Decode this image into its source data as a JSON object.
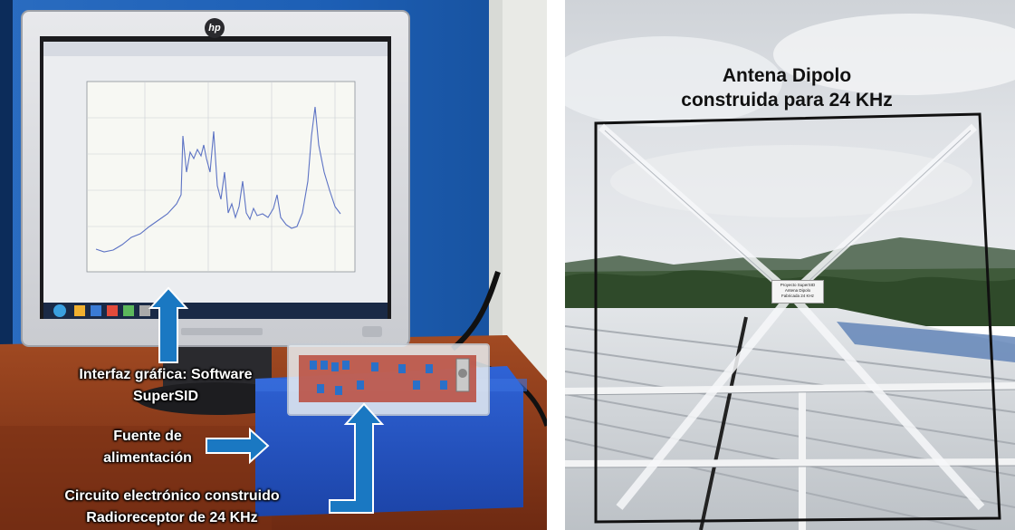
{
  "left_photo": {
    "monitor_brand": "hp",
    "annotations": {
      "interfaz": [
        "Interfaz gráfica: Software",
        "SuperSID"
      ],
      "fuente": [
        "Fuente de",
        "alimentación"
      ],
      "circuito": [
        "Circuito electrónico construido",
        "Radioreceptor de 24 KHz"
      ]
    },
    "colors": {
      "wall_blue": "#1f63b8",
      "annotation_arrow": "#1a78c2",
      "power_box": "#2456c9",
      "desk_wood": "#8a3a1c"
    }
  },
  "right_photo": {
    "title": [
      "Antena Dipolo",
      "construida para 24 KHz"
    ],
    "label_plate": [
      "Proyecto SuperSID",
      "Antena Dipolo",
      "Fabricada 24 KHz"
    ]
  }
}
